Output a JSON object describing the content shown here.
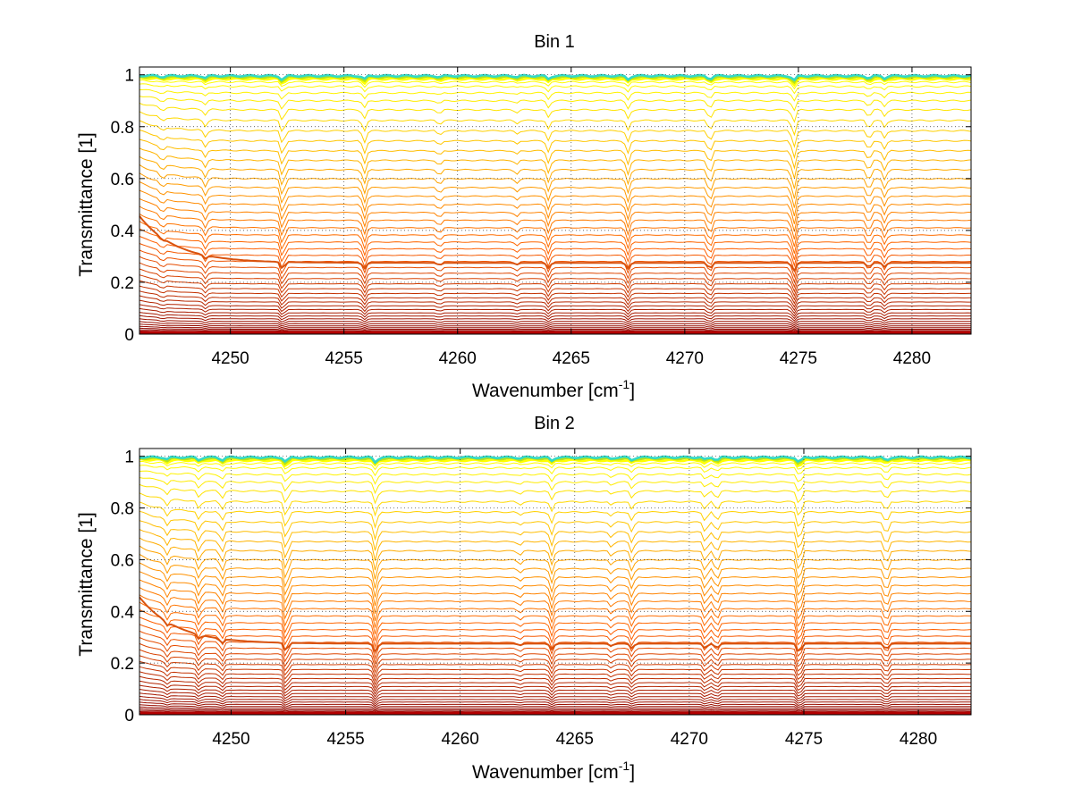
{
  "chart_data": [
    {
      "type": "line",
      "title": "Bin 1",
      "xlabel": "Wavenumber [cm",
      "xlabel_sup": "-1",
      "xlabel_close": "]",
      "ylabel": "Transmittance [1]",
      "xlim": [
        4246,
        4282.6
      ],
      "ylim": [
        0,
        1.03
      ],
      "xticks": [
        4250,
        4255,
        4260,
        4265,
        4270,
        4275,
        4280
      ],
      "xtick_labels": [
        "4250",
        "4255",
        "4260",
        "4265",
        "4270",
        "4275",
        "4280"
      ],
      "yticks": [
        0,
        0.2,
        0.4,
        0.6,
        0.8,
        1
      ],
      "ytick_labels": [
        "0",
        "0.2",
        "0.4",
        "0.6",
        "0.8",
        "1"
      ],
      "grid": true,
      "grid_style": "dotted",
      "colormap": "autumn-to-jet (dark red at bottom, orange, yellow, cyan at top)",
      "series_count": 48,
      "series_levels": [
        0.003,
        0.006,
        0.01,
        0.014,
        0.019,
        0.025,
        0.032,
        0.04,
        0.049,
        0.059,
        0.07,
        0.082,
        0.095,
        0.109,
        0.124,
        0.14,
        0.157,
        0.175,
        0.194,
        0.214,
        0.235,
        0.257,
        0.28,
        0.304,
        0.329,
        0.355,
        0.382,
        0.41,
        0.439,
        0.469,
        0.5,
        0.532,
        0.565,
        0.599,
        0.634,
        0.67,
        0.707,
        0.745,
        0.784,
        0.824,
        0.865,
        0.9,
        0.93,
        0.955,
        0.972,
        0.984,
        0.991,
        0.996
      ],
      "highlight_series_level": 0.275,
      "absorption_lines": [
        {
          "x": 4247.0,
          "depth": 0.02
        },
        {
          "x": 4248.9,
          "depth": 0.03
        },
        {
          "x": 4252.3,
          "depth": 0.06
        },
        {
          "x": 4255.9,
          "depth": 0.05
        },
        {
          "x": 4259.2,
          "depth": 0.02
        },
        {
          "x": 4262.6,
          "depth": 0.015
        },
        {
          "x": 4264.0,
          "depth": 0.045
        },
        {
          "x": 4267.5,
          "depth": 0.05
        },
        {
          "x": 4271.1,
          "depth": 0.05
        },
        {
          "x": 4274.8,
          "depth": 0.07
        },
        {
          "x": 4278.1,
          "depth": 0.04
        },
        {
          "x": 4278.8,
          "depth": 0.035
        }
      ]
    },
    {
      "type": "line",
      "title": "Bin 2",
      "xlabel": "Wavenumber [cm",
      "xlabel_sup": "-1",
      "xlabel_close": "]",
      "ylabel": "Transmittance [1]",
      "xlim": [
        4246,
        4282.3
      ],
      "ylim": [
        0,
        1.03
      ],
      "xticks": [
        4250,
        4255,
        4260,
        4265,
        4270,
        4275,
        4280
      ],
      "xtick_labels": [
        "4250",
        "4255",
        "4260",
        "4265",
        "4270",
        "4275",
        "4280"
      ],
      "yticks": [
        0,
        0.2,
        0.4,
        0.6,
        0.8,
        1
      ],
      "ytick_labels": [
        "0",
        "0.2",
        "0.4",
        "0.6",
        "0.8",
        "1"
      ],
      "grid": true,
      "grid_style": "dotted",
      "colormap": "autumn-to-jet (dark red at bottom, orange, yellow, cyan at top)",
      "series_count": 48,
      "series_levels": [
        0.003,
        0.006,
        0.01,
        0.014,
        0.019,
        0.025,
        0.032,
        0.04,
        0.049,
        0.059,
        0.07,
        0.082,
        0.095,
        0.109,
        0.124,
        0.14,
        0.157,
        0.175,
        0.194,
        0.214,
        0.235,
        0.257,
        0.28,
        0.304,
        0.329,
        0.355,
        0.382,
        0.41,
        0.439,
        0.469,
        0.5,
        0.532,
        0.565,
        0.599,
        0.634,
        0.67,
        0.707,
        0.745,
        0.784,
        0.824,
        0.865,
        0.9,
        0.93,
        0.955,
        0.972,
        0.984,
        0.991,
        0.996
      ],
      "highlight_series_level": 0.275,
      "absorption_lines": [
        {
          "x": 4247.2,
          "depth": 0.03
        },
        {
          "x": 4248.6,
          "depth": 0.04
        },
        {
          "x": 4249.6,
          "depth": 0.04
        },
        {
          "x": 4252.4,
          "depth": 0.07
        },
        {
          "x": 4256.3,
          "depth": 0.07
        },
        {
          "x": 4262.6,
          "depth": 0.015
        },
        {
          "x": 4264.0,
          "depth": 0.05
        },
        {
          "x": 4266.6,
          "depth": 0.02
        },
        {
          "x": 4267.5,
          "depth": 0.04
        },
        {
          "x": 4270.7,
          "depth": 0.04
        },
        {
          "x": 4271.2,
          "depth": 0.04
        },
        {
          "x": 4274.8,
          "depth": 0.08
        },
        {
          "x": 4278.6,
          "depth": 0.05
        }
      ]
    }
  ]
}
